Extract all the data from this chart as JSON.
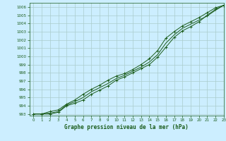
{
  "title": "Graphe pression niveau de la mer (hPa)",
  "background_color": "#cceeff",
  "grid_color": "#aacccc",
  "line_color": "#1a5c1a",
  "xlim": [
    -0.5,
    23
  ],
  "ylim": [
    992.8,
    1006.5
  ],
  "yticks": [
    993,
    994,
    995,
    996,
    997,
    998,
    999,
    1000,
    1001,
    1002,
    1003,
    1004,
    1005,
    1006
  ],
  "xticks": [
    0,
    1,
    2,
    3,
    4,
    5,
    6,
    7,
    8,
    9,
    10,
    11,
    12,
    13,
    14,
    15,
    16,
    17,
    18,
    19,
    20,
    21,
    22,
    23
  ],
  "line1_x": [
    0,
    1,
    2,
    3,
    4,
    5,
    6,
    7,
    8,
    9,
    10,
    11,
    12,
    13,
    14,
    15,
    16,
    17,
    18,
    19,
    20,
    21,
    22,
    23
  ],
  "line1_y": [
    993.0,
    993.0,
    993.0,
    993.2,
    994.0,
    994.3,
    994.7,
    995.4,
    995.9,
    996.4,
    997.1,
    997.5,
    998.0,
    998.5,
    999.0,
    999.9,
    1001.1,
    1002.3,
    1003.1,
    1003.6,
    1004.2,
    1005.0,
    1005.7,
    1006.2
  ],
  "line2_x": [
    0,
    1,
    2,
    3,
    4,
    5,
    6,
    7,
    8,
    9,
    10,
    11,
    12,
    13,
    14,
    15,
    16,
    17,
    18,
    19,
    20,
    21,
    22,
    23
  ],
  "line2_y": [
    993.0,
    993.0,
    993.3,
    993.5,
    994.2,
    994.7,
    995.4,
    996.0,
    996.5,
    997.1,
    997.6,
    997.9,
    998.4,
    999.0,
    999.7,
    1000.7,
    1002.2,
    1003.0,
    1003.7,
    1004.2,
    1004.7,
    1005.3,
    1005.9,
    1006.2
  ],
  "line3_x": [
    0,
    1,
    2,
    3,
    4,
    5,
    6,
    7,
    8,
    9,
    10,
    11,
    12,
    13,
    14,
    15,
    16,
    17,
    18,
    19,
    20,
    21,
    22,
    23
  ],
  "line3_y": [
    993.0,
    993.0,
    993.1,
    993.3,
    994.1,
    994.5,
    995.0,
    995.7,
    996.2,
    996.7,
    997.3,
    997.7,
    998.2,
    998.7,
    999.3,
    1000.2,
    1001.6,
    1002.6,
    1003.4,
    1003.9,
    1004.4,
    1004.9,
    1005.6,
    1006.2
  ]
}
